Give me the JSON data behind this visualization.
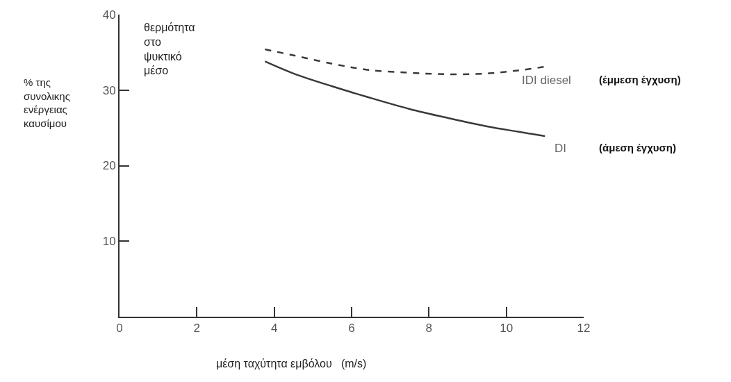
{
  "chart_data": {
    "type": "line",
    "xlabel": "μέση ταχύτητα εμβόλου   (m/s)",
    "ylabel": "% της\nσυνολικης\nενέργειας\nκαυσίμου",
    "x": [
      3.76,
      4.5,
      5.5,
      6.4,
      7.5,
      8.5,
      9.5,
      10.3,
      11.0
    ],
    "series": [
      {
        "name": "IDI diesel",
        "color": "#3a3a3a",
        "line_style": "dashed",
        "values": [
          35.4,
          34.6,
          33.5,
          32.7,
          32.3,
          32.1,
          32.2,
          32.6,
          33.1
        ]
      },
      {
        "name": "DI",
        "color": "#3a3a3a",
        "line_style": "solid",
        "values": [
          33.8,
          32.2,
          30.5,
          29.1,
          27.5,
          26.3,
          25.2,
          24.5,
          23.9
        ]
      }
    ],
    "annotations": [
      "θερμότητα\nστο\nψυκτικό\nμέσο",
      "(έμμεση έγχυση)",
      "(άμεση έγχυση)"
    ],
    "xlim": [
      0,
      12
    ],
    "xticks": [
      0,
      2,
      4,
      6,
      8,
      10,
      12
    ],
    "ylim": [
      0,
      40
    ],
    "yticks": [
      10,
      20,
      30,
      40
    ],
    "legend": false,
    "marker": "none"
  }
}
